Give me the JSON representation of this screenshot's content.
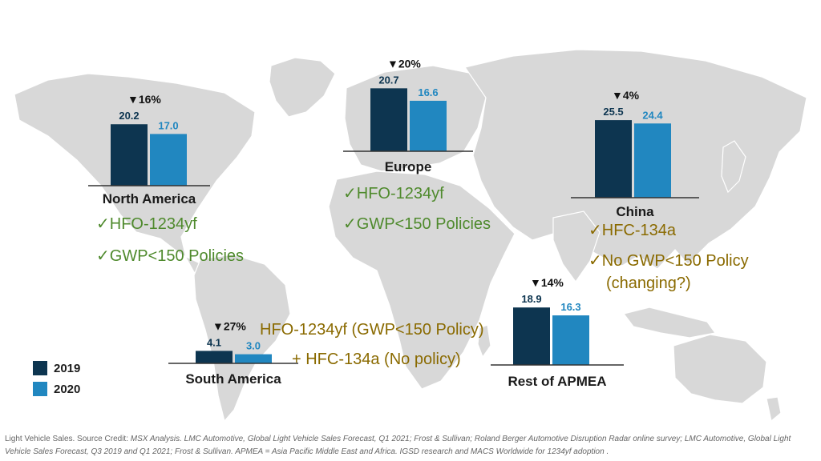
{
  "colors": {
    "y2019": "#0d3550",
    "y2020": "#2187c0",
    "map": "#d8d8d8",
    "policy_green": "#4f8a2d",
    "policy_gold": "#8a6a00"
  },
  "chart_data": [
    {
      "type": "bar",
      "region": "North America",
      "change": "▼16%",
      "categories": [
        "2019",
        "2020"
      ],
      "values": [
        20.2,
        17.0
      ],
      "labels": [
        "20.2",
        "17.0"
      ]
    },
    {
      "type": "bar",
      "region": "Europe",
      "change": "▼20%",
      "categories": [
        "2019",
        "2020"
      ],
      "values": [
        20.7,
        16.6
      ],
      "labels": [
        "20.7",
        "16.6"
      ]
    },
    {
      "type": "bar",
      "region": "China",
      "change": "▼4%",
      "categories": [
        "2019",
        "2020"
      ],
      "values": [
        25.5,
        24.4
      ],
      "labels": [
        "25.5",
        "24.4"
      ]
    },
    {
      "type": "bar",
      "region": "Rest of APMEA",
      "change": "▼14%",
      "categories": [
        "2019",
        "2020"
      ],
      "values": [
        18.9,
        16.3
      ],
      "labels": [
        "18.9",
        "16.3"
      ]
    },
    {
      "type": "bar",
      "region": "South America",
      "change": "▼27%",
      "categories": [
        "2019",
        "2020"
      ],
      "values": [
        4.1,
        3.0
      ],
      "labels": [
        "4.1",
        "3.0"
      ]
    }
  ],
  "legend": [
    {
      "label": "2019"
    },
    {
      "label": "2020"
    }
  ],
  "policies": {
    "na": [
      "✓HFO-1234yf",
      "✓GWP<150 Policies"
    ],
    "eu": [
      "✓HFO-1234yf",
      "✓GWP<150 Policies"
    ],
    "cn": [
      "✓HFC-134a",
      "✓No GWP<150 Policy",
      "(changing?)"
    ],
    "sa": [
      "HFO-1234yf (GWP<150 Policy)",
      "+ HFC-134a (No policy)"
    ]
  },
  "footnote": {
    "prefix": "Light Vehicle Sales.  Source Credit: ",
    "body": "MSX Analysis. LMC Automotive, Global Light  Vehicle Sales Forecast, Q1 2021; Frost & Sullivan; Roland Berger Automotive Disruption Radar online survey; LMC Automotive, Global Light Vehicle Sales Forecast, Q3 2019 and Q1 2021; Frost & Sullivan.  APMEA = Asia Pacific Middle East and Africa.  IGSD research and MACS Worldwide for 1234yf adoption ."
  }
}
